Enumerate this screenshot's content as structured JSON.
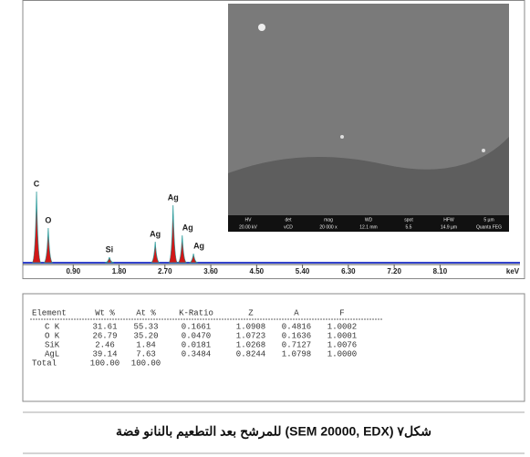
{
  "spectrum": {
    "x_unit": "keV",
    "xlim": [
      0,
      9.4
    ],
    "ylim": [
      0,
      100
    ],
    "xticks": [
      {
        "value": 0.9,
        "label": "0.90"
      },
      {
        "value": 1.8,
        "label": "1.80"
      },
      {
        "value": 2.7,
        "label": "2.70"
      },
      {
        "value": 3.6,
        "label": "3.60"
      },
      {
        "value": 4.5,
        "label": "4.50"
      },
      {
        "value": 5.4,
        "label": "5.40"
      },
      {
        "value": 6.3,
        "label": "6.30"
      },
      {
        "value": 7.2,
        "label": "7.20"
      },
      {
        "value": 8.1,
        "label": "8.10"
      }
    ],
    "peaks": [
      {
        "label": "C",
        "x": 0.18,
        "height": 78
      },
      {
        "label": "O",
        "x": 0.41,
        "height": 38
      },
      {
        "label": "Si",
        "x": 1.61,
        "height": 6
      },
      {
        "label": "Ag",
        "x": 2.51,
        "height": 23
      },
      {
        "label": "Ag",
        "x": 2.86,
        "height": 63
      },
      {
        "label": "Ag",
        "x": 3.04,
        "height": 30
      },
      {
        "label": "Ag",
        "x": 3.26,
        "height": 10
      }
    ]
  },
  "sem_image": {
    "info_headers": [
      "HV",
      "det",
      "mag",
      "WD",
      "spot",
      "HFW",
      "5 µm"
    ],
    "info_values": [
      "20.00 kV",
      "vCD",
      "20 000 x",
      "12.1 mm",
      "5.5",
      "14.9 µm",
      "Quanta FEG"
    ]
  },
  "table": {
    "columns": [
      "Element",
      "Wt %",
      "At %",
      "K-Ratio",
      "Z",
      "A",
      "F"
    ],
    "rows": [
      [
        "C K",
        "31.61",
        "55.33",
        "0.1661",
        "1.0908",
        "0.4816",
        "1.0002"
      ],
      [
        "O K",
        "26.79",
        "35.20",
        "0.0470",
        "1.0723",
        "0.1636",
        "1.0001"
      ],
      [
        "SiK",
        "2.46",
        "1.84",
        "0.0181",
        "1.0268",
        "0.7127",
        "1.0076"
      ],
      [
        "AgL",
        "39.14",
        "7.63",
        "0.3484",
        "0.8244",
        "1.0798",
        "1.0000"
      ],
      [
        "Total",
        "100.00",
        "100.00"
      ]
    ]
  },
  "caption": "شكل٧ (SEM 20000, EDX) للمرشح بعد التطعيم بالنانو فضة"
}
